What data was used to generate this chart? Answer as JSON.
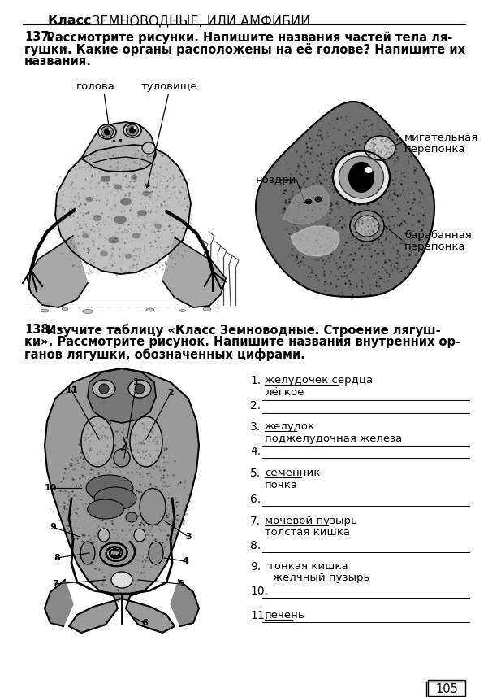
{
  "bg_color": "#ffffff",
  "page_number": "105",
  "title_bold": "Класс",
  "title_normal": " ЗЕМНОВОДНЫЕ, ИЛИ АМФИБИИ",
  "task137_num": "137.",
  "task137_line1": " Рассмотрите рисунки. Напишите названия частей тела ля-",
  "task137_line2": "гушки. Какие органы расположены на её голове? Напишите их",
  "task137_line3": "названия.",
  "task138_num": "138.",
  "task138_line1": " Изучите таблицу «Класс Земноводные. Строение лягуш-",
  "task138_line2": "ки». Рассмотрите рисунок. Напишите названия внутренних ор-",
  "task138_line3": "ганов лягушки, обозначенных цифрами.",
  "label_golova": "голова",
  "label_tulovische": "туловище",
  "label_nozdri": "ноздри",
  "label_migat1": "мигательная",
  "label_migat2": "перепонка",
  "label_barab1": "барабанная",
  "label_barab2": "перепонка",
  "list_items": [
    {
      "num": "1.",
      "text1": "желудочек сердца",
      "ul1": true,
      "text2": "лёгкое",
      "ul2": false,
      "blank": true
    },
    {
      "num": "2.",
      "text1": "",
      "ul1": false,
      "text2": "",
      "ul2": false,
      "blank": true
    },
    {
      "num": "3.",
      "text1": "желудок",
      "ul1": true,
      "text2": "поджелудочная железа",
      "ul2": false,
      "blank": true
    },
    {
      "num": "4.",
      "text1": "",
      "ul1": false,
      "text2": "",
      "ul2": false,
      "blank": true
    },
    {
      "num": "5.",
      "text1": "семенник",
      "ul1": true,
      "text2": "почка",
      "ul2": false,
      "blank": false
    },
    {
      "num": "6.",
      "text1": "",
      "ul1": false,
      "text2": "",
      "ul2": false,
      "blank": true
    },
    {
      "num": "7.",
      "text1": "мочевой пузырь",
      "ul1": true,
      "text2": "толстая кишка",
      "ul2": false,
      "blank": false
    },
    {
      "num": "8.",
      "text1": "",
      "ul1": false,
      "text2": "",
      "ul2": false,
      "blank": true
    },
    {
      "num": "9.",
      "text1": " тонкая кишка",
      "ul1": false,
      "text2": "желчный пузырь",
      "ul2": false,
      "blank": false
    },
    {
      "num": "10.",
      "text1": "",
      "ul1": false,
      "text2": "",
      "ul2": false,
      "blank": true
    },
    {
      "num": "11.",
      "text1": "печень",
      "ul1": true,
      "text2": "",
      "ul2": false,
      "blank": true
    }
  ]
}
